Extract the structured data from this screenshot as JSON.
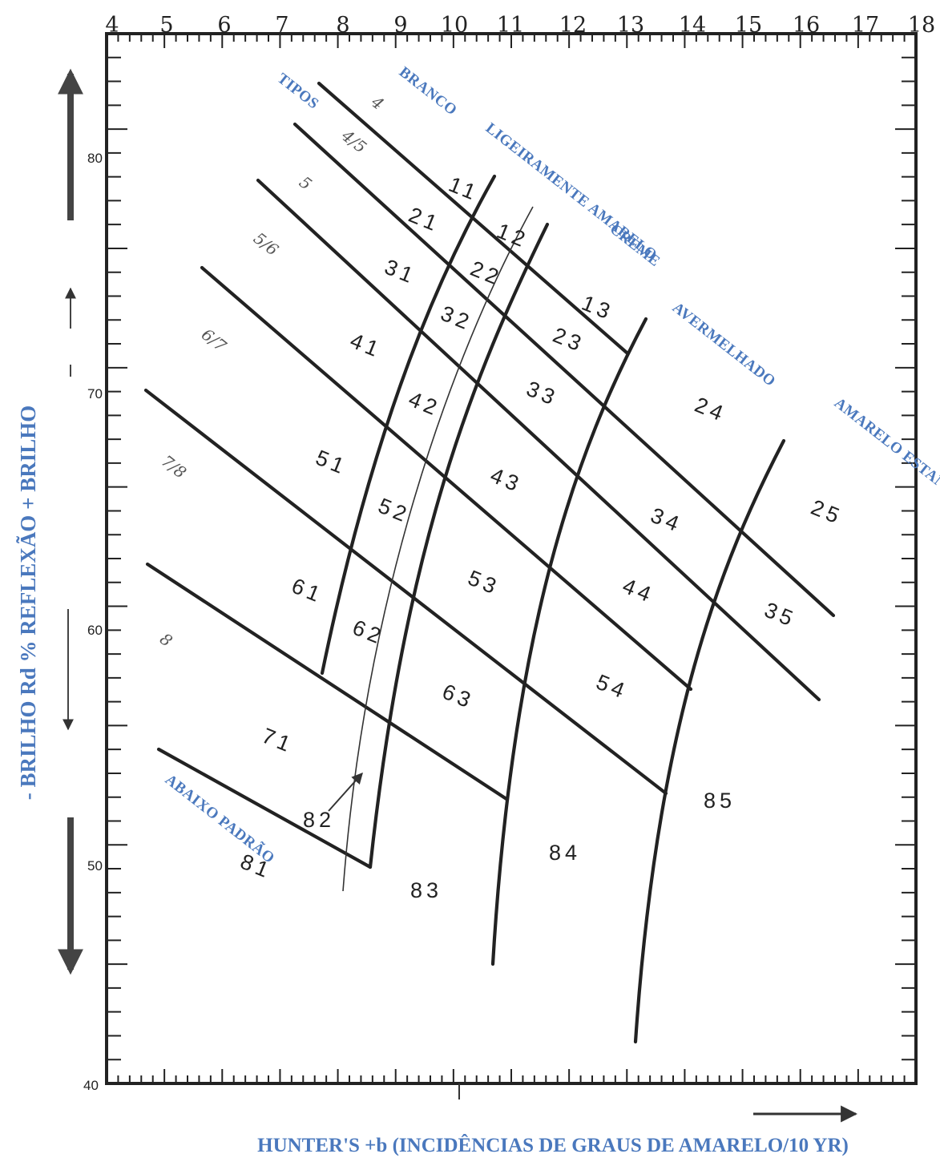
{
  "chart_data": {
    "type": "diagram",
    "xlabel": "HUNTER'S +b (INCIDÊNCIAS DE GRAUS DE AMARELO/10 YR)",
    "ylabel": "-  BRILHO Rd % REFLEXÃO + BRILHO",
    "xlim": [
      4,
      18
    ],
    "ylim": [
      40,
      84
    ],
    "x_ticks": [
      "4",
      "5",
      "6",
      "7",
      "8",
      "9",
      "10",
      "11",
      "12",
      "13",
      "14",
      "15",
      "16",
      "17",
      "18"
    ],
    "y_ticks": [
      "40",
      "50",
      "60",
      "70",
      "80"
    ],
    "type_heading": "TIPOS",
    "types": [
      "4",
      "4/5",
      "5",
      "5/6",
      "6/7",
      "7/8",
      "8"
    ],
    "color_categories": [
      "BRANCO",
      "LIGEIRAMENTE AMARELO",
      "CREME",
      "AVERMELHADO",
      "AMARELO ESTANHADO",
      "ABAIXO PADRÃO"
    ],
    "grades": [
      "11",
      "12",
      "13",
      "21",
      "22",
      "23",
      "24",
      "25",
      "31",
      "32",
      "33",
      "34",
      "35",
      "41",
      "42",
      "43",
      "44",
      "51",
      "52",
      "53",
      "54",
      "61",
      "62",
      "63",
      "71",
      "81",
      "82",
      "83",
      "84",
      "85"
    ],
    "colors": {
      "axis_title": "#4a78bd",
      "lines": "#222222"
    }
  }
}
